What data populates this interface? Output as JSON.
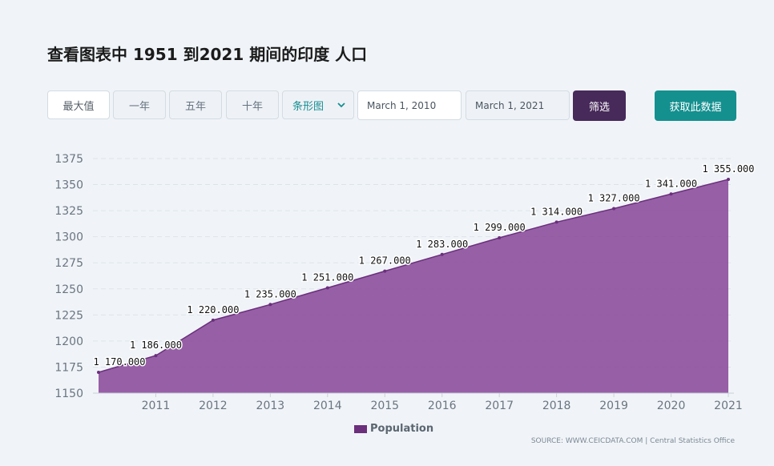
{
  "title": "查看图表中 1951 到2021 期间的印度 人口",
  "toolbar": {
    "max_label": "最大值",
    "one_year_label": "一年",
    "five_year_label": "五年",
    "ten_year_label": "十年",
    "chart_type": "条形图",
    "date_from": "March 1, 2010",
    "date_to": "March 1, 2021",
    "filter_label": "筛选",
    "get_data_label": "获取此数据"
  },
  "colors": {
    "series_fill": "#8d4f9c",
    "series_stroke": "#6b2f7c",
    "filter_button": "#47295a",
    "get_data_button": "#14908f"
  },
  "legend": {
    "label": "Population"
  },
  "source": "SOURCE: WWW.CEICDATA.COM | Central Statistics Office",
  "chart_data": {
    "type": "area",
    "title": "",
    "xlabel": "",
    "ylabel": "",
    "x": [
      2010.17,
      2011.17,
      2012.17,
      2013.17,
      2014.17,
      2015.17,
      2016.17,
      2017.17,
      2018.17,
      2019.17,
      2020.17,
      2021.17
    ],
    "x_ticks": [
      "2011",
      "2012",
      "2013",
      "2014",
      "2015",
      "2016",
      "2017",
      "2018",
      "2019",
      "2020",
      "2021"
    ],
    "xlim": [
      2010.17,
      2021.17
    ],
    "ylim": [
      1150,
      1375
    ],
    "y_ticks": [
      "1150",
      "1175",
      "1200",
      "1225",
      "1250",
      "1275",
      "1300",
      "1325",
      "1350",
      "1375"
    ],
    "grid": true,
    "legend_position": "bottom-center",
    "series": [
      {
        "name": "Population",
        "values": [
          1170,
          1186,
          1220,
          1235,
          1251,
          1267,
          1283,
          1299,
          1314,
          1327,
          1341,
          1355
        ],
        "labels": [
          "1 170.000",
          "1 186.000",
          "1 220.000",
          "1 235.000",
          "1 251.000",
          "1 267.000",
          "1 283.000",
          "1 299.000",
          "1 314.000",
          "1 327.000",
          "1 341.000",
          "1 355.000"
        ]
      }
    ]
  }
}
